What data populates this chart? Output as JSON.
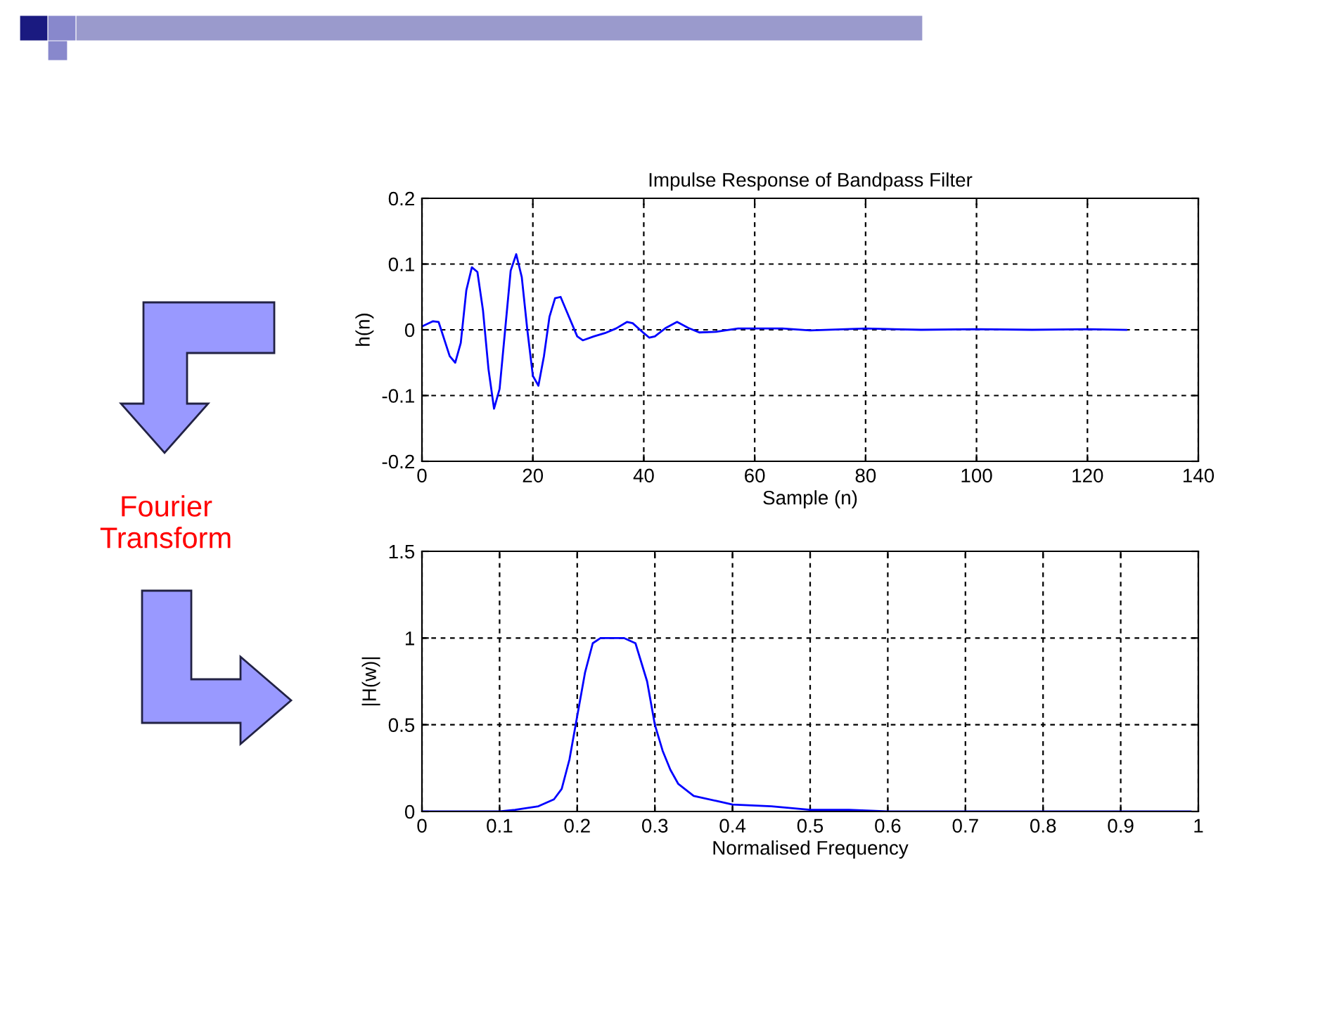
{
  "chart_data": [
    {
      "type": "line",
      "title": "Impulse Response of Bandpass Filter",
      "xlabel": "Sample (n)",
      "ylabel": "h(n)",
      "xlim": [
        0,
        140
      ],
      "xticks": [
        0,
        20,
        40,
        60,
        80,
        100,
        120,
        140
      ],
      "ylim": [
        -0.2,
        0.2
      ],
      "yticks": [
        -0.2,
        -0.1,
        0,
        0.1,
        0.2
      ],
      "grid": true,
      "legend": false,
      "series": [
        {
          "color": "#0000ff",
          "x": [
            0,
            2,
            3,
            5,
            6,
            7,
            8,
            9,
            10,
            11,
            12,
            13,
            14,
            15,
            16,
            17,
            18,
            19,
            20,
            21,
            22,
            23,
            24,
            25,
            26,
            28,
            29,
            31,
            33,
            35,
            37,
            38,
            40,
            41,
            42,
            44,
            46,
            48,
            50,
            53,
            57,
            65,
            70,
            80,
            90,
            100,
            110,
            120,
            127
          ],
          "values": [
            0.005,
            0.013,
            0.012,
            -0.04,
            -0.05,
            -0.02,
            0.06,
            0.095,
            0.088,
            0.03,
            -0.06,
            -0.12,
            -0.09,
            0.0,
            0.09,
            0.115,
            0.08,
            0.0,
            -0.07,
            -0.085,
            -0.04,
            0.02,
            0.048,
            0.05,
            0.03,
            -0.01,
            -0.016,
            -0.01,
            -0.005,
            0.002,
            0.012,
            0.01,
            -0.005,
            -0.012,
            -0.01,
            0.003,
            0.012,
            0.003,
            -0.004,
            -0.003,
            0.002,
            0.002,
            -0.001,
            0.002,
            0,
            0.001,
            0,
            0.001,
            0
          ]
        }
      ]
    },
    {
      "type": "line",
      "xlabel": "Normalised Frequency",
      "ylabel": "|H(w)|",
      "xlim": [
        0,
        1
      ],
      "xticks": [
        0,
        0.1,
        0.2,
        0.3,
        0.4,
        0.5,
        0.6,
        0.7,
        0.8,
        0.9,
        1
      ],
      "ylim": [
        0,
        1.5
      ],
      "yticks": [
        0,
        0.5,
        1,
        1.5
      ],
      "grid": true,
      "legend": false,
      "annotations": [
        "Fourier\nTransform"
      ],
      "series": [
        {
          "color": "#0000ff",
          "x": [
            0,
            0.1,
            0.12,
            0.15,
            0.17,
            0.18,
            0.19,
            0.2,
            0.21,
            0.22,
            0.23,
            0.26,
            0.275,
            0.29,
            0.3,
            0.31,
            0.32,
            0.33,
            0.35,
            0.38,
            0.4,
            0.45,
            0.5,
            0.55,
            0.6,
            0.8,
            0.99
          ],
          "values": [
            0,
            0,
            0.01,
            0.03,
            0.07,
            0.13,
            0.3,
            0.55,
            0.8,
            0.97,
            1.0,
            1.0,
            0.97,
            0.75,
            0.5,
            0.35,
            0.24,
            0.16,
            0.09,
            0.06,
            0.04,
            0.03,
            0.01,
            0.01,
            0,
            0,
            0
          ]
        }
      ]
    }
  ]
}
